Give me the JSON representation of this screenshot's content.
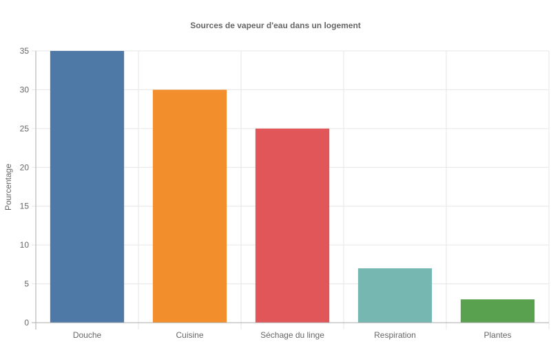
{
  "chart_data": {
    "type": "bar",
    "title": "Sources de vapeur d'eau dans un logement",
    "xlabel": "",
    "ylabel": "Pourcentage",
    "categories": [
      "Douche",
      "Cuisine",
      "Séchage du linge",
      "Respiration",
      "Plantes"
    ],
    "values": [
      35,
      30,
      25,
      7,
      3
    ],
    "colors": [
      "#4e79a7",
      "#f28e2c",
      "#e15759",
      "#76b7b2",
      "#59a14f"
    ],
    "ylim": [
      0,
      35
    ],
    "yticks": [
      0,
      5,
      10,
      15,
      20,
      25,
      30,
      35
    ],
    "grid": true,
    "legend": "none"
  }
}
